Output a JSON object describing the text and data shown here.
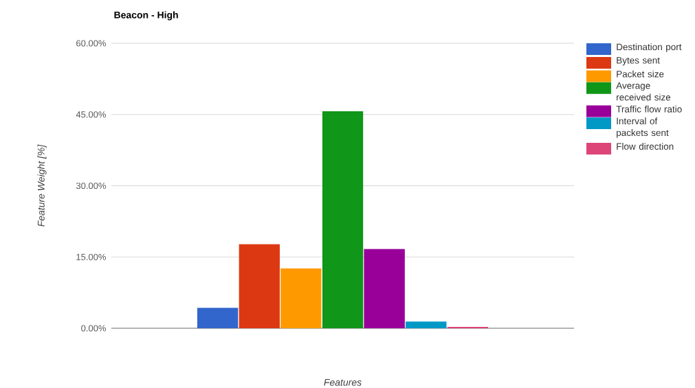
{
  "chart_data": {
    "type": "bar",
    "title": "Beacon - High",
    "xlabel": "Features",
    "ylabel": "Feature Weight [%]",
    "categories": [
      null
    ],
    "series": [
      {
        "name": "Destination port",
        "color": "#3366cc",
        "values": [
          4.3
        ]
      },
      {
        "name": "Bytes sent",
        "color": "#dc3912",
        "values": [
          17.7
        ]
      },
      {
        "name": "Packet size",
        "color": "#ff9900",
        "values": [
          12.6
        ]
      },
      {
        "name": "Average received size",
        "color": "#109618",
        "values": [
          45.7
        ]
      },
      {
        "name": "Traffic flow ratio",
        "color": "#990099",
        "values": [
          16.7
        ]
      },
      {
        "name": "Interval of packets sent",
        "color": "#0099c6",
        "values": [
          1.4
        ]
      },
      {
        "name": "Flow direction",
        "color": "#dd4477",
        "values": [
          0.3
        ]
      }
    ],
    "ylim": [
      0,
      60
    ],
    "yticks": [
      {
        "value": 0,
        "label": "0.00%"
      },
      {
        "value": 15,
        "label": "15.00%"
      },
      {
        "value": 30,
        "label": "30.00%"
      },
      {
        "value": 45,
        "label": "45.00%"
      },
      {
        "value": 60,
        "label": "60.00%"
      }
    ],
    "grid": "y",
    "legend": "right"
  }
}
